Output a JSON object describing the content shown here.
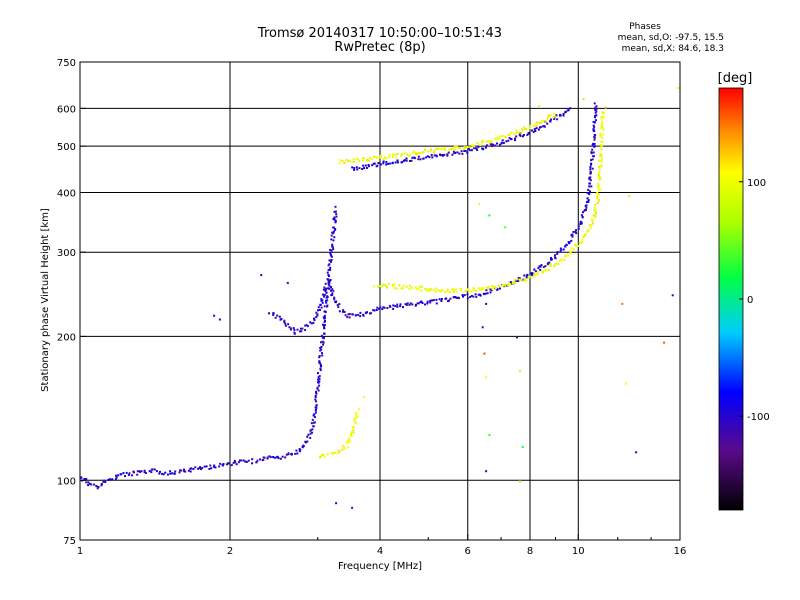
{
  "chart_data": {
    "type": "scatter",
    "title": "Tromsø 20140317 10:50:00–10:51:43",
    "subtitle": "RwPretec (8p)",
    "xlabel": "Frequency [MHz]",
    "ylabel": "Stationary phase Virtual Height [km]",
    "x_scale": "log",
    "y_scale": "log",
    "xlim": [
      1,
      16
    ],
    "ylim": [
      75,
      750
    ],
    "x_ticks": [
      1,
      2,
      4,
      6,
      8,
      10,
      16
    ],
    "x_tick_labels": [
      "1",
      "2",
      "4",
      "6",
      "8",
      "10",
      "16"
    ],
    "y_ticks": [
      75,
      100,
      200,
      300,
      400,
      500,
      600,
      750
    ],
    "y_tick_labels": [
      "75",
      "100",
      "200",
      "300",
      "400",
      "500",
      "600",
      "750"
    ],
    "grid_x": [
      2,
      4,
      6,
      8,
      10
    ],
    "grid_y": [
      100,
      200,
      300,
      400,
      500,
      600
    ],
    "grid": true,
    "stats": {
      "heading": "Phases",
      "line_o": "mean, sd,O:  -97.5,  15.5",
      "line_x": "mean, sd,X:   84.6,  18.3"
    },
    "colorbar": {
      "label": "[deg]",
      "range": [
        -180,
        180
      ],
      "ticks": [
        100,
        0,
        -100
      ],
      "tick_labels": [
        "100",
        "0",
        "-100"
      ]
    },
    "traces": [
      {
        "name_hidden": "",
        "phase": -100,
        "points": [
          [
            1.0,
            102
          ],
          [
            1.04,
            99
          ],
          [
            1.08,
            97
          ],
          [
            1.12,
            100
          ],
          [
            1.2,
            103
          ],
          [
            1.3,
            104
          ],
          [
            1.4,
            105
          ],
          [
            1.5,
            104
          ],
          [
            1.6,
            105
          ],
          [
            1.7,
            106
          ],
          [
            1.8,
            107
          ],
          [
            1.9,
            108
          ],
          [
            2.0,
            109
          ],
          [
            2.1,
            110
          ],
          [
            2.2,
            110
          ],
          [
            2.3,
            111
          ],
          [
            2.4,
            112
          ],
          [
            2.5,
            112
          ],
          [
            2.6,
            113
          ],
          [
            2.7,
            115
          ],
          [
            2.8,
            118
          ],
          [
            2.9,
            126
          ],
          [
            2.95,
            140
          ],
          [
            3.0,
            165
          ],
          [
            3.05,
            195
          ],
          [
            3.1,
            230
          ],
          [
            3.15,
            275
          ],
          [
            3.2,
            320
          ],
          [
            3.25,
            375
          ]
        ]
      },
      {
        "name_hidden": "",
        "phase": -100,
        "points": [
          [
            2.4,
            225
          ],
          [
            2.5,
            220
          ],
          [
            2.6,
            212
          ],
          [
            2.7,
            205
          ],
          [
            2.8,
            208
          ],
          [
            2.9,
            215
          ],
          [
            3.0,
            225
          ],
          [
            3.05,
            240
          ],
          [
            3.1,
            255
          ],
          [
            3.15,
            265
          ],
          [
            3.2,
            245
          ],
          [
            3.3,
            230
          ],
          [
            3.4,
            222
          ],
          [
            3.6,
            222
          ],
          [
            3.8,
            226
          ],
          [
            4.0,
            230
          ],
          [
            4.4,
            233
          ],
          [
            4.8,
            236
          ],
          [
            5.2,
            238
          ],
          [
            5.6,
            241
          ],
          [
            6.0,
            244
          ],
          [
            6.4,
            247
          ],
          [
            6.8,
            252
          ],
          [
            7.2,
            258
          ],
          [
            7.6,
            264
          ],
          [
            8.0,
            272
          ],
          [
            8.5,
            283
          ],
          [
            9.0,
            296
          ],
          [
            9.5,
            315
          ],
          [
            10.0,
            340
          ],
          [
            10.3,
            370
          ],
          [
            10.5,
            410
          ],
          [
            10.6,
            460
          ],
          [
            10.7,
            520
          ],
          [
            10.75,
            580
          ],
          [
            10.8,
            620
          ]
        ]
      },
      {
        "name_hidden": "",
        "phase": 100,
        "points": [
          [
            3.9,
            258
          ],
          [
            4.2,
            256
          ],
          [
            4.6,
            254
          ],
          [
            5.0,
            252
          ],
          [
            5.5,
            251
          ],
          [
            6.0,
            251
          ],
          [
            6.5,
            253
          ],
          [
            7.0,
            257
          ],
          [
            7.5,
            262
          ],
          [
            8.0,
            268
          ],
          [
            8.5,
            276
          ],
          [
            9.0,
            286
          ],
          [
            9.5,
            298
          ],
          [
            10.0,
            315
          ],
          [
            10.4,
            333
          ],
          [
            10.7,
            355
          ],
          [
            10.9,
            390
          ],
          [
            11.0,
            430
          ],
          [
            11.05,
            480
          ],
          [
            11.1,
            540
          ],
          [
            11.15,
            600
          ]
        ]
      },
      {
        "name_hidden": "",
        "phase": -100,
        "points": [
          [
            3.5,
            450
          ],
          [
            3.7,
            455
          ],
          [
            4.0,
            462
          ],
          [
            4.5,
            470
          ],
          [
            5.0,
            477
          ],
          [
            5.5,
            484
          ],
          [
            6.0,
            491
          ],
          [
            6.5,
            500
          ],
          [
            7.0,
            512
          ],
          [
            7.5,
            525
          ],
          [
            8.0,
            540
          ],
          [
            8.5,
            556
          ],
          [
            9.0,
            575
          ],
          [
            9.4,
            592
          ],
          [
            9.6,
            610
          ]
        ]
      },
      {
        "name_hidden": "",
        "phase": 100,
        "points": [
          [
            3.3,
            465
          ],
          [
            3.6,
            470
          ],
          [
            4.0,
            476
          ],
          [
            4.5,
            483
          ],
          [
            5.0,
            490
          ],
          [
            5.5,
            496
          ],
          [
            6.0,
            502
          ],
          [
            6.5,
            512
          ],
          [
            7.0,
            524
          ],
          [
            7.5,
            537
          ],
          [
            8.0,
            552
          ],
          [
            8.5,
            568
          ],
          [
            9.0,
            588
          ]
        ]
      },
      {
        "name_hidden": "",
        "phase": 100,
        "points": [
          [
            3.0,
            113
          ],
          [
            3.1,
            113
          ],
          [
            3.2,
            114
          ],
          [
            3.3,
            115
          ],
          [
            3.4,
            118
          ],
          [
            3.45,
            121
          ],
          [
            3.5,
            126
          ],
          [
            3.55,
            134
          ],
          [
            3.6,
            142
          ]
        ]
      }
    ],
    "scatter_points": [
      [
        1.85,
        222,
        -100
      ],
      [
        1.9,
        218,
        -100
      ],
      [
        2.3,
        270,
        -100
      ],
      [
        2.6,
        260,
        -100
      ],
      [
        3.25,
        90,
        -100
      ],
      [
        3.5,
        88,
        -100
      ],
      [
        3.7,
        150,
        100
      ],
      [
        6.4,
        210,
        -100
      ],
      [
        6.45,
        185,
        160
      ],
      [
        6.5,
        165,
        100
      ],
      [
        6.5,
        105,
        -100
      ],
      [
        6.6,
        125,
        30
      ],
      [
        7.1,
        340,
        40
      ],
      [
        7.5,
        200,
        -130
      ],
      [
        7.6,
        100,
        60
      ],
      [
        7.6,
        170,
        80
      ],
      [
        7.7,
        118,
        20
      ],
      [
        6.3,
        380,
        100
      ],
      [
        8.3,
        610,
        100
      ],
      [
        12.2,
        235,
        150
      ],
      [
        12.4,
        160,
        100
      ],
      [
        12.6,
        395,
        120
      ],
      [
        13.0,
        115,
        -90
      ],
      [
        14.8,
        195,
        160
      ],
      [
        15.4,
        245,
        -100
      ],
      [
        15.8,
        665,
        100
      ],
      [
        10.2,
        630,
        120
      ],
      [
        11.3,
        605,
        130
      ],
      [
        6.5,
        235,
        -100
      ],
      [
        6.6,
        360,
        20
      ]
    ]
  }
}
